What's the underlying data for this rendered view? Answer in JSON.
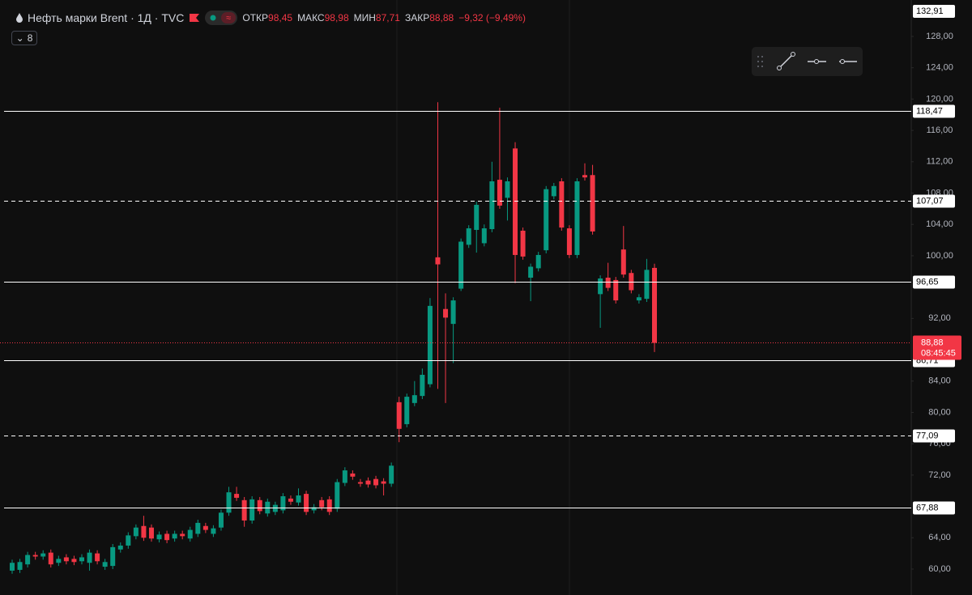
{
  "header": {
    "title": "Нефть марки Brent · 1Д · TVC",
    "open_label": "ОТКР",
    "open": "98,45",
    "high_label": "МАКС",
    "high": "98,98",
    "low_label": "МИН",
    "low": "87,71",
    "close_label": "ЗАКР",
    "close": "88,88",
    "change": "−9,32 (−9,49%)",
    "indicators_count": "8"
  },
  "chart_data": {
    "type": "candlestick",
    "up_color": "#089981",
    "down_color": "#f23645",
    "ylim": [
      56.69,
      132.65
    ],
    "yticks": [
      {
        "value": 60,
        "label": "60,00"
      },
      {
        "value": 64,
        "label": "64,00"
      },
      {
        "value": 72,
        "label": "72,00"
      },
      {
        "value": 76,
        "label": "76,00"
      },
      {
        "value": 80,
        "label": "80,00"
      },
      {
        "value": 84,
        "label": "84,00"
      },
      {
        "value": 92,
        "label": "92,00"
      },
      {
        "value": 100,
        "label": "100,00"
      },
      {
        "value": 104,
        "label": "104,00"
      },
      {
        "value": 108,
        "label": "108,00"
      },
      {
        "value": 112,
        "label": "112,00"
      },
      {
        "value": 116,
        "label": "116,00"
      },
      {
        "value": 120,
        "label": "120,00"
      },
      {
        "value": 124,
        "label": "124,00"
      },
      {
        "value": 128,
        "label": "128,00"
      }
    ],
    "scale_top": {
      "value": 132.91,
      "label": "132,91"
    },
    "levels": [
      {
        "value": 118.47,
        "label": "118,47",
        "dashed": false
      },
      {
        "value": 107.07,
        "label": "107,07",
        "dashed": true
      },
      {
        "value": 96.65,
        "label": "96,65",
        "dashed": false
      },
      {
        "value": 86.71,
        "label": "86,71",
        "dashed": false
      },
      {
        "value": 77.09,
        "label": "77,09",
        "dashed": true
      },
      {
        "value": 67.88,
        "label": "67,88",
        "dashed": false
      }
    ],
    "last_price": {
      "value": 88.88,
      "label": "88,88"
    },
    "countdown": "08:45:45",
    "open": [
      59.8,
      59.9,
      60.6,
      61.8,
      61.6,
      62.1,
      60.8,
      61.5,
      61.3,
      61.0,
      60.8,
      62.0,
      60.3,
      60.4,
      62.5,
      63.0,
      64.2,
      65.5,
      65.3,
      63.8,
      64.5,
      63.9,
      64.5,
      63.9,
      64.5,
      65.5,
      64.5,
      65.3,
      67.2,
      69.6,
      68.8,
      66.2,
      68.8,
      67.1,
      67.3,
      67.5,
      69.0,
      68.5,
      69.6,
      67.5,
      68.8,
      68.9,
      67.7,
      71.0,
      72.2,
      71.1,
      71.3,
      71.5,
      71.2,
      70.9,
      81.3,
      78.5,
      81.2,
      82.1,
      83.6,
      99.8,
      93.2,
      91.3,
      95.8,
      101.4,
      103.3,
      101.6,
      103.4,
      109.7,
      107.4,
      113.7,
      103.2,
      97.2,
      98.4,
      100.7,
      107.6,
      109.5,
      103.5,
      100.1,
      110.3,
      110.3,
      95.1,
      97.2,
      96.9,
      100.8,
      97.8,
      94.3,
      94.5,
      98.45
    ],
    "high": [
      61.2,
      61.3,
      62.2,
      62.2,
      62.4,
      62.5,
      61.7,
      61.9,
      61.7,
      61.9,
      62.5,
      62.4,
      61.3,
      63.2,
      63.4,
      64.7,
      65.7,
      66.8,
      65.7,
      64.8,
      64.9,
      64.9,
      64.9,
      65.4,
      66.3,
      65.9,
      65.6,
      67.6,
      70.5,
      70.5,
      69.2,
      69.3,
      69.2,
      69.0,
      68.6,
      69.7,
      69.4,
      70.3,
      70.0,
      68.3,
      69.2,
      69.3,
      71.5,
      73.0,
      72.6,
      71.5,
      71.7,
      71.9,
      71.6,
      73.6,
      82.0,
      82.4,
      84.0,
      85.6,
      94.6,
      119.6,
      95.2,
      94.7,
      102.2,
      103.9,
      106.9,
      104.0,
      112.0,
      118.9,
      110.0,
      114.5,
      103.6,
      99.0,
      100.5,
      108.9,
      109.3,
      109.9,
      103.9,
      109.9,
      111.8,
      111.6,
      97.5,
      99.1,
      97.3,
      103.8,
      98.2,
      95.1,
      99.6,
      98.98
    ],
    "low": [
      59.4,
      59.5,
      60.2,
      61.2,
      61.2,
      60.2,
      60.4,
      60.6,
      60.5,
      60.6,
      59.8,
      60.6,
      59.9,
      60.0,
      62.1,
      62.6,
      63.8,
      63.6,
      63.5,
      63.4,
      63.3,
      63.5,
      63.8,
      63.5,
      64.1,
      64.6,
      64.1,
      64.9,
      66.8,
      68.7,
      65.4,
      65.8,
      67.0,
      66.7,
      66.9,
      67.1,
      68.2,
      68.1,
      66.9,
      67.1,
      67.5,
      66.9,
      67.3,
      70.6,
      71.4,
      70.5,
      70.4,
      70.3,
      69.4,
      70.5,
      76.2,
      78.1,
      80.8,
      81.7,
      83.2,
      83.0,
      81.2,
      86.3,
      95.5,
      101.0,
      100.4,
      101.2,
      103.0,
      106.0,
      104.5,
      96.5,
      99.5,
      94.2,
      98.0,
      100.3,
      107.2,
      103.2,
      99.7,
      99.7,
      109.6,
      102.7,
      90.8,
      95.5,
      93.9,
      97.2,
      95.2,
      93.9,
      94.1,
      87.71
    ],
    "close": [
      60.8,
      60.9,
      61.8,
      61.6,
      62.0,
      60.6,
      61.3,
      61.0,
      60.9,
      61.5,
      62.1,
      61.0,
      60.9,
      62.8,
      63.0,
      64.3,
      65.3,
      64.0,
      63.9,
      64.4,
      63.7,
      64.5,
      64.2,
      65.0,
      65.9,
      65.0,
      65.2,
      67.2,
      69.8,
      69.1,
      66.2,
      68.9,
      67.4,
      68.6,
      68.2,
      69.3,
      68.6,
      69.4,
      67.3,
      67.9,
      67.9,
      67.3,
      71.1,
      72.6,
      71.8,
      70.9,
      70.8,
      70.7,
      70.9,
      73.2,
      77.9,
      82.0,
      82.2,
      84.8,
      93.6,
      98.9,
      92.1,
      94.3,
      101.8,
      103.5,
      106.5,
      103.5,
      109.5,
      106.4,
      109.5,
      100.1,
      99.9,
      98.6,
      100.1,
      108.5,
      108.9,
      103.6,
      100.1,
      109.5,
      110.0,
      103.1,
      97.1,
      95.9,
      94.3,
      97.6,
      95.6,
      94.7,
      98.2,
      88.88
    ]
  }
}
